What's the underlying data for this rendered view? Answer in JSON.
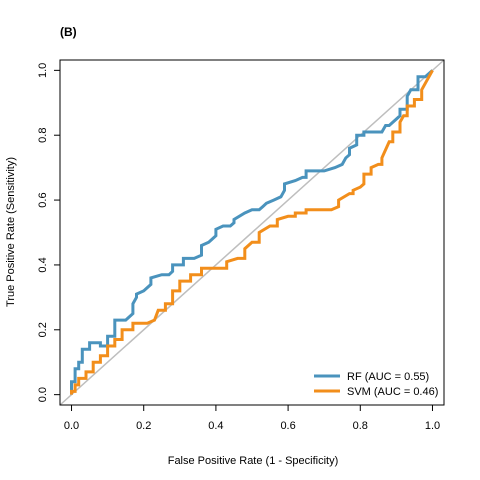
{
  "chart_data": {
    "type": "line",
    "title": "(B)",
    "xlabel": "False Positive Rate (1 - Specificity)",
    "ylabel": "True Positive Rate (Sensitivity)",
    "xlim": [
      0,
      1
    ],
    "ylim": [
      0,
      1
    ],
    "x_ticks": [
      "0.0",
      "0.2",
      "0.4",
      "0.6",
      "0.8",
      "1.0"
    ],
    "y_ticks": [
      "0.0",
      "0.2",
      "0.4",
      "0.6",
      "0.8",
      "1.0"
    ],
    "grid": false,
    "legend_position": "bottom-right",
    "reference_line": {
      "x": [
        0,
        1
      ],
      "y": [
        0,
        1
      ],
      "color": "#bebebe"
    },
    "series": [
      {
        "name": "RF (AUC = 0.55)",
        "color": "#4a93bd",
        "x": [
          0.0,
          0.0,
          0.01,
          0.01,
          0.02,
          0.02,
          0.03,
          0.03,
          0.05,
          0.05,
          0.08,
          0.08,
          0.1,
          0.1,
          0.12,
          0.12,
          0.15,
          0.17,
          0.17,
          0.18,
          0.18,
          0.2,
          0.22,
          0.22,
          0.25,
          0.27,
          0.28,
          0.28,
          0.31,
          0.31,
          0.34,
          0.36,
          0.36,
          0.38,
          0.39,
          0.4,
          0.4,
          0.42,
          0.44,
          0.45,
          0.45,
          0.48,
          0.5,
          0.52,
          0.53,
          0.54,
          0.56,
          0.58,
          0.59,
          0.59,
          0.62,
          0.64,
          0.65,
          0.65,
          0.7,
          0.73,
          0.75,
          0.76,
          0.77,
          0.77,
          0.79,
          0.79,
          0.81,
          0.81,
          0.86,
          0.87,
          0.88,
          0.91,
          0.91,
          0.93,
          0.93,
          0.94,
          0.96,
          0.96,
          0.98,
          1.0
        ],
        "y": [
          0.0,
          0.04,
          0.04,
          0.08,
          0.08,
          0.1,
          0.1,
          0.14,
          0.14,
          0.16,
          0.16,
          0.15,
          0.15,
          0.18,
          0.18,
          0.23,
          0.23,
          0.25,
          0.28,
          0.3,
          0.31,
          0.32,
          0.34,
          0.36,
          0.37,
          0.37,
          0.38,
          0.4,
          0.4,
          0.42,
          0.42,
          0.43,
          0.46,
          0.47,
          0.48,
          0.49,
          0.51,
          0.52,
          0.52,
          0.53,
          0.54,
          0.56,
          0.57,
          0.57,
          0.58,
          0.59,
          0.6,
          0.61,
          0.63,
          0.65,
          0.66,
          0.67,
          0.67,
          0.69,
          0.69,
          0.7,
          0.71,
          0.73,
          0.74,
          0.76,
          0.77,
          0.8,
          0.8,
          0.81,
          0.81,
          0.83,
          0.83,
          0.86,
          0.88,
          0.88,
          0.92,
          0.94,
          0.94,
          0.98,
          0.98,
          1.0
        ]
      },
      {
        "name": "SVM (AUC = 0.46)",
        "color": "#f28e1b",
        "x": [
          0.0,
          0.0,
          0.01,
          0.01,
          0.02,
          0.02,
          0.04,
          0.04,
          0.06,
          0.06,
          0.08,
          0.08,
          0.1,
          0.1,
          0.12,
          0.12,
          0.14,
          0.14,
          0.17,
          0.17,
          0.19,
          0.21,
          0.23,
          0.24,
          0.26,
          0.26,
          0.28,
          0.28,
          0.3,
          0.3,
          0.33,
          0.33,
          0.36,
          0.36,
          0.4,
          0.43,
          0.43,
          0.46,
          0.48,
          0.48,
          0.5,
          0.52,
          0.52,
          0.55,
          0.57,
          0.57,
          0.6,
          0.62,
          0.62,
          0.65,
          0.65,
          0.72,
          0.74,
          0.74,
          0.77,
          0.78,
          0.78,
          0.8,
          0.81,
          0.81,
          0.83,
          0.83,
          0.85,
          0.86,
          0.86,
          0.88,
          0.89,
          0.89,
          0.91,
          0.91,
          0.92,
          0.93,
          0.93,
          0.95,
          0.95,
          0.97,
          0.97,
          0.98,
          1.0
        ],
        "y": [
          0.0,
          0.01,
          0.01,
          0.03,
          0.03,
          0.05,
          0.05,
          0.07,
          0.07,
          0.1,
          0.1,
          0.12,
          0.12,
          0.15,
          0.15,
          0.17,
          0.17,
          0.2,
          0.2,
          0.22,
          0.22,
          0.22,
          0.23,
          0.26,
          0.26,
          0.28,
          0.28,
          0.32,
          0.32,
          0.35,
          0.35,
          0.37,
          0.37,
          0.39,
          0.39,
          0.39,
          0.41,
          0.42,
          0.42,
          0.45,
          0.47,
          0.47,
          0.5,
          0.52,
          0.52,
          0.54,
          0.55,
          0.55,
          0.56,
          0.56,
          0.57,
          0.57,
          0.58,
          0.6,
          0.62,
          0.62,
          0.63,
          0.64,
          0.65,
          0.68,
          0.68,
          0.7,
          0.71,
          0.71,
          0.73,
          0.78,
          0.78,
          0.81,
          0.81,
          0.84,
          0.86,
          0.86,
          0.89,
          0.89,
          0.91,
          0.91,
          0.94,
          0.96,
          1.0
        ]
      }
    ]
  }
}
